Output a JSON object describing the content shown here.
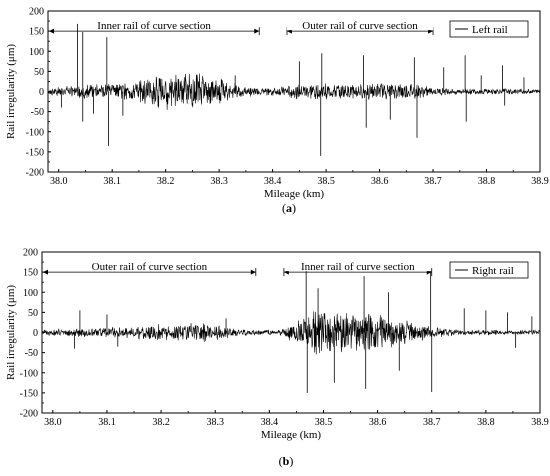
{
  "chart_data": [
    {
      "type": "line",
      "panel": "a",
      "caption_letter": "a",
      "xlabel": "Mileage (km)",
      "ylabel": "Rail irregularity (μm)",
      "xlim": [
        37.98,
        38.9
      ],
      "ylim": [
        -200,
        200
      ],
      "xticks": [
        38.0,
        38.1,
        38.2,
        38.3,
        38.4,
        38.5,
        38.6,
        38.7,
        38.8,
        38.9
      ],
      "xtick_labels": [
        "38.0",
        "38.1",
        "38.2",
        "38.3",
        "38.4",
        "38.5",
        "38.6",
        "38.7",
        "38.8",
        "38.9"
      ],
      "yticks": [
        -200,
        -150,
        -100,
        -50,
        0,
        50,
        100,
        150,
        200
      ],
      "ytick_labels": [
        "-200",
        "-150",
        "-100",
        "-50",
        "0",
        "50",
        "100",
        "150",
        "200"
      ],
      "legend": {
        "placement": "top-right",
        "label": "Left rail"
      },
      "series": [
        {
          "name": "Left rail",
          "color": "#000000",
          "envelope": [
            {
              "x": 37.98,
              "amp": 10
            },
            {
              "x": 38.02,
              "amp": 14
            },
            {
              "x": 38.06,
              "amp": 22
            },
            {
              "x": 38.1,
              "amp": 20
            },
            {
              "x": 38.14,
              "amp": 26
            },
            {
              "x": 38.17,
              "amp": 38
            },
            {
              "x": 38.2,
              "amp": 48
            },
            {
              "x": 38.24,
              "amp": 52
            },
            {
              "x": 38.28,
              "amp": 46
            },
            {
              "x": 38.31,
              "amp": 30
            },
            {
              "x": 38.34,
              "amp": 16
            },
            {
              "x": 38.38,
              "amp": 9
            },
            {
              "x": 38.42,
              "amp": 14
            },
            {
              "x": 38.46,
              "amp": 24
            },
            {
              "x": 38.5,
              "amp": 22
            },
            {
              "x": 38.55,
              "amp": 20
            },
            {
              "x": 38.6,
              "amp": 22
            },
            {
              "x": 38.66,
              "amp": 24
            },
            {
              "x": 38.7,
              "amp": 12
            },
            {
              "x": 38.75,
              "amp": 8
            },
            {
              "x": 38.8,
              "amp": 8
            },
            {
              "x": 38.85,
              "amp": 7
            },
            {
              "x": 38.9,
              "amp": 6
            }
          ],
          "spikes": [
            {
              "x": 38.035,
              "y": 168
            },
            {
              "x": 38.045,
              "y": 148
            },
            {
              "x": 38.045,
              "y": -75
            },
            {
              "x": 38.09,
              "y": 135
            },
            {
              "x": 38.093,
              "y": -135
            },
            {
              "x": 38.005,
              "y": -40
            },
            {
              "x": 38.065,
              "y": -55
            },
            {
              "x": 38.12,
              "y": -60
            },
            {
              "x": 38.33,
              "y": 40
            },
            {
              "x": 38.49,
              "y": -160
            },
            {
              "x": 38.492,
              "y": 95
            },
            {
              "x": 38.45,
              "y": 75
            },
            {
              "x": 38.57,
              "y": 90
            },
            {
              "x": 38.575,
              "y": -90
            },
            {
              "x": 38.665,
              "y": 85
            },
            {
              "x": 38.67,
              "y": -115
            },
            {
              "x": 38.62,
              "y": -70
            },
            {
              "x": 38.72,
              "y": 60
            },
            {
              "x": 38.76,
              "y": 90
            },
            {
              "x": 38.762,
              "y": -75
            },
            {
              "x": 38.79,
              "y": 40
            },
            {
              "x": 38.83,
              "y": 65
            },
            {
              "x": 38.834,
              "y": -35
            },
            {
              "x": 38.87,
              "y": 35
            }
          ]
        }
      ],
      "annotations": [
        {
          "text": "Inner rail of curve section",
          "x_start": 37.98,
          "x_end": 38.375,
          "y": 150
        },
        {
          "text": "Outer rail of curve section",
          "x_start": 38.425,
          "x_end": 38.7,
          "y": 150
        }
      ]
    },
    {
      "type": "line",
      "panel": "b",
      "caption_letter": "b",
      "xlabel": "Mileage (km)",
      "ylabel": "Rail irregularity (μm)",
      "xlim": [
        37.98,
        38.9
      ],
      "ylim": [
        -200,
        200
      ],
      "xticks": [
        38.0,
        38.1,
        38.2,
        38.3,
        38.4,
        38.5,
        38.6,
        38.7,
        38.8,
        38.9
      ],
      "xtick_labels": [
        "38.0",
        "38.1",
        "38.2",
        "38.3",
        "38.4",
        "38.5",
        "38.6",
        "38.7",
        "38.8",
        "38.9"
      ],
      "yticks": [
        -200,
        -150,
        -100,
        -50,
        0,
        50,
        100,
        150,
        200
      ],
      "ytick_labels": [
        "-200",
        "-150",
        "-100",
        "-50",
        "0",
        "50",
        "100",
        "150",
        "200"
      ],
      "legend": {
        "placement": "top-right",
        "label": "Right rail"
      },
      "series": [
        {
          "name": "Right rail",
          "color": "#000000",
          "envelope": [
            {
              "x": 37.98,
              "amp": 8
            },
            {
              "x": 38.02,
              "amp": 10
            },
            {
              "x": 38.06,
              "amp": 12
            },
            {
              "x": 38.1,
              "amp": 14
            },
            {
              "x": 38.15,
              "amp": 16
            },
            {
              "x": 38.2,
              "amp": 24
            },
            {
              "x": 38.25,
              "amp": 28
            },
            {
              "x": 38.3,
              "amp": 22
            },
            {
              "x": 38.34,
              "amp": 10
            },
            {
              "x": 38.38,
              "amp": 7
            },
            {
              "x": 38.42,
              "amp": 9
            },
            {
              "x": 38.45,
              "amp": 30
            },
            {
              "x": 38.48,
              "amp": 62
            },
            {
              "x": 38.51,
              "amp": 55
            },
            {
              "x": 38.55,
              "amp": 50
            },
            {
              "x": 38.58,
              "amp": 56
            },
            {
              "x": 38.62,
              "amp": 44
            },
            {
              "x": 38.66,
              "amp": 32
            },
            {
              "x": 38.7,
              "amp": 14
            },
            {
              "x": 38.75,
              "amp": 8
            },
            {
              "x": 38.8,
              "amp": 7
            },
            {
              "x": 38.85,
              "amp": 6
            },
            {
              "x": 38.9,
              "amp": 6
            }
          ],
          "spikes": [
            {
              "x": 38.04,
              "y": -40
            },
            {
              "x": 38.05,
              "y": 55
            },
            {
              "x": 38.1,
              "y": 45
            },
            {
              "x": 38.12,
              "y": -35
            },
            {
              "x": 38.32,
              "y": 35
            },
            {
              "x": 38.468,
              "y": 155
            },
            {
              "x": 38.47,
              "y": -150
            },
            {
              "x": 38.49,
              "y": 110
            },
            {
              "x": 38.52,
              "y": -125
            },
            {
              "x": 38.575,
              "y": 140
            },
            {
              "x": 38.578,
              "y": -140
            },
            {
              "x": 38.62,
              "y": 100
            },
            {
              "x": 38.64,
              "y": -95
            },
            {
              "x": 38.698,
              "y": 170
            },
            {
              "x": 38.7,
              "y": -148
            },
            {
              "x": 38.76,
              "y": 60
            },
            {
              "x": 38.8,
              "y": 55
            },
            {
              "x": 38.84,
              "y": 50
            },
            {
              "x": 38.855,
              "y": -38
            },
            {
              "x": 38.885,
              "y": 40
            }
          ]
        }
      ],
      "annotations": [
        {
          "text": "Outer rail of curve section",
          "x_start": 37.98,
          "x_end": 38.375,
          "y": 150
        },
        {
          "text": "Inner rail of curve section",
          "x_start": 38.425,
          "x_end": 38.7,
          "y": 150
        }
      ]
    }
  ]
}
